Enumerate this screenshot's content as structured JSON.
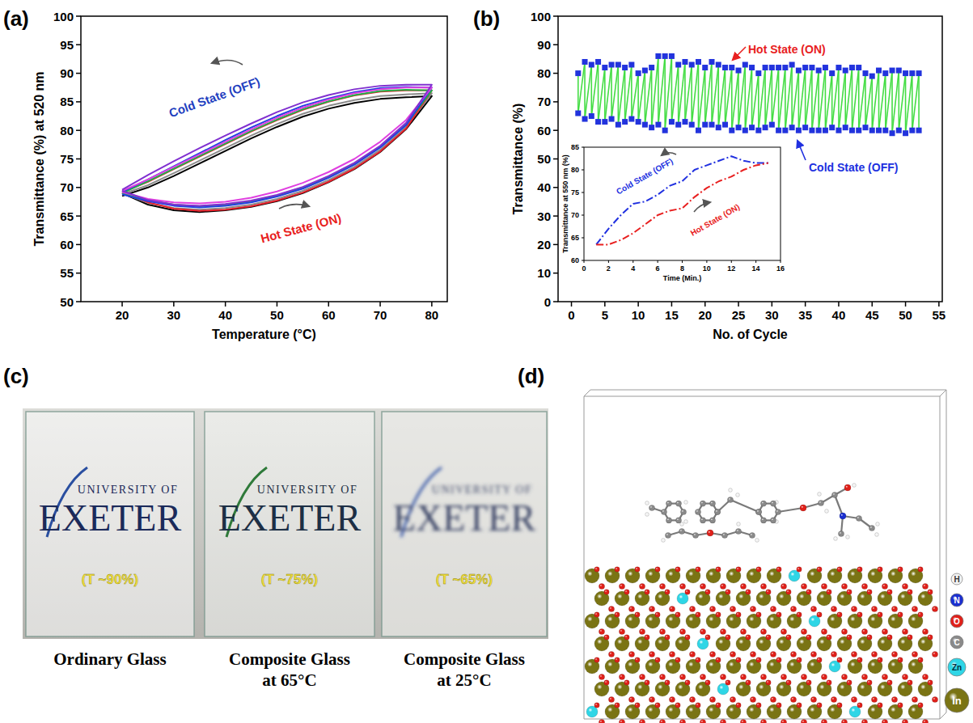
{
  "chart_data": [
    {
      "type": "line",
      "title": "(a)",
      "x_label": "Temperature (°C)",
      "y_label": "Transmittance (%) at 520 nm",
      "x": [
        20,
        25,
        30,
        35,
        40,
        45,
        50,
        55,
        60,
        65,
        70,
        75,
        80,
        75,
        70,
        65,
        60,
        55,
        50,
        45,
        40,
        35,
        30,
        25,
        20
      ],
      "series": [
        {
          "color": "#000000",
          "line_style": "solid",
          "values": [
            69.0,
            67.0,
            66.0,
            65.7,
            66.0,
            66.6,
            67.6,
            69.0,
            70.9,
            73.2,
            76.2,
            80.2,
            86.0,
            85.8,
            85.5,
            84.8,
            83.8,
            82.4,
            80.6,
            78.6,
            76.4,
            74.2,
            72.0,
            70.0,
            68.5
          ]
        },
        {
          "color": "#8c8c8c",
          "line_style": "solid",
          "values": [
            69.0,
            67.3,
            66.4,
            66.1,
            66.4,
            67.0,
            68.0,
            69.4,
            71.3,
            73.6,
            76.6,
            80.6,
            86.5,
            86.3,
            86.0,
            85.3,
            84.3,
            82.9,
            81.1,
            79.1,
            76.9,
            74.7,
            72.5,
            70.4,
            68.8
          ]
        },
        {
          "color": "#e8202a",
          "line_style": "solid",
          "values": [
            69.2,
            67.4,
            66.3,
            65.9,
            66.1,
            66.7,
            67.7,
            69.1,
            71.0,
            73.3,
            76.3,
            80.3,
            87.0,
            87.0,
            86.8,
            86.1,
            85.0,
            83.6,
            81.8,
            79.8,
            77.6,
            75.4,
            73.2,
            71.0,
            69.2
          ]
        },
        {
          "color": "#22b04a",
          "line_style": "solid",
          "values": [
            69.0,
            67.8,
            67.0,
            66.7,
            67.0,
            67.6,
            68.6,
            70.0,
            71.9,
            74.2,
            77.2,
            81.0,
            87.0,
            87.1,
            86.9,
            86.2,
            85.1,
            83.7,
            81.9,
            79.9,
            77.7,
            75.5,
            73.3,
            71.1,
            69.0
          ]
        },
        {
          "color": "#2040e0",
          "line_style": "solid",
          "values": [
            68.8,
            67.6,
            66.8,
            66.5,
            66.8,
            67.4,
            68.4,
            69.8,
            71.7,
            74.0,
            77.0,
            80.9,
            87.5,
            87.6,
            87.4,
            86.7,
            85.6,
            84.3,
            82.5,
            80.5,
            78.3,
            76.0,
            73.7,
            71.4,
            69.2
          ]
        },
        {
          "color": "#e040e0",
          "line_style": "solid",
          "values": [
            69.2,
            68.0,
            67.4,
            67.2,
            67.5,
            68.2,
            69.3,
            70.8,
            72.7,
            75.0,
            78.0,
            81.8,
            87.5,
            87.5,
            87.2,
            86.5,
            85.4,
            84.0,
            82.2,
            80.2,
            78.0,
            75.8,
            73.6,
            71.4,
            69.4
          ]
        },
        {
          "color": "#8030d0",
          "line_style": "solid",
          "values": [
            69.4,
            67.8,
            67.0,
            66.8,
            67.1,
            67.7,
            68.7,
            70.1,
            72.0,
            74.3,
            77.3,
            81.3,
            88.0,
            88.0,
            87.8,
            87.2,
            86.2,
            84.9,
            83.2,
            81.2,
            79.1,
            76.9,
            74.6,
            72.2,
            69.6
          ]
        }
      ],
      "annotations": [
        "Cold State (OFF)",
        "Hot State (ON)"
      ],
      "xlim": [
        12,
        83
      ],
      "xticks": [
        20,
        30,
        40,
        50,
        60,
        70,
        80
      ],
      "ylim": [
        50,
        100
      ],
      "yticks": [
        50,
        55,
        60,
        65,
        70,
        75,
        80,
        85,
        90,
        95,
        100
      ],
      "grid": false
    },
    {
      "type": "line",
      "title": "(b)",
      "x_label": "No. of Cycle",
      "y_label": "Transmittance (%)",
      "x": [
        1,
        2,
        3,
        4,
        5,
        6,
        7,
        8,
        9,
        10,
        11,
        12,
        13,
        14,
        15,
        16,
        17,
        18,
        19,
        20,
        21,
        22,
        23,
        24,
        25,
        26,
        27,
        28,
        29,
        30,
        31,
        32,
        33,
        34,
        35,
        36,
        37,
        38,
        39,
        40,
        41,
        42,
        43,
        44,
        45,
        46,
        47,
        48,
        49,
        50,
        51,
        52
      ],
      "series": [
        {
          "name": "Hot State (ON)",
          "color": "#2233dd",
          "marker": "square",
          "line_style": "none",
          "values": [
            80,
            84,
            83,
            84,
            82,
            83,
            83,
            82,
            83,
            80,
            81,
            82,
            86,
            86,
            86,
            83,
            84,
            83,
            84,
            82,
            84,
            83,
            82,
            82,
            81,
            83,
            82,
            80,
            82,
            82,
            82,
            82,
            83,
            81,
            82,
            82,
            81,
            82,
            80,
            82,
            81,
            82,
            82,
            80,
            79,
            81,
            80,
            81,
            81,
            80,
            80,
            80
          ]
        },
        {
          "name": "Cold State (OFF)",
          "color": "#2233dd",
          "marker": "square",
          "line_style": "none",
          "values": [
            66,
            64,
            65,
            63,
            63,
            64,
            62,
            63,
            64,
            63,
            62,
            61,
            62,
            60,
            63,
            62,
            63,
            62,
            60,
            62,
            62,
            61,
            62,
            60,
            61,
            60,
            61,
            60,
            61,
            62,
            60,
            60,
            61,
            60,
            61,
            60,
            60,
            60,
            61,
            60,
            61,
            60,
            60,
            61,
            60,
            60,
            60,
            59,
            60,
            59,
            60,
            60
          ]
        }
      ],
      "xlim": [
        -2,
        55.5
      ],
      "xticks": [
        0,
        5,
        10,
        15,
        20,
        25,
        30,
        35,
        40,
        45,
        50,
        55
      ],
      "ylim": [
        0,
        100
      ],
      "yticks": [
        0,
        10,
        20,
        30,
        40,
        50,
        60,
        70,
        80,
        90,
        100
      ],
      "grid": false
    },
    {
      "type": "line",
      "x_label": "Time (Min.)",
      "y_label": "Transmittance at 550 nm (%)",
      "x": [
        1,
        2,
        3,
        4,
        5,
        6,
        7,
        8,
        9,
        10,
        11,
        12,
        13,
        14,
        15
      ],
      "series": [
        {
          "name": "Cold State (OFF)",
          "color": "#2030e0",
          "line_style": "dashdot",
          "values": [
            63.5,
            67,
            70,
            72.5,
            73,
            74.5,
            76.5,
            77.5,
            80,
            81,
            82,
            83,
            82,
            81.5,
            81.5
          ]
        },
        {
          "name": "Hot State (ON)",
          "color": "#e82020",
          "line_style": "dashdot",
          "values": [
            63.5,
            63.5,
            64.5,
            66,
            68,
            70,
            71,
            71.5,
            74,
            76,
            77.5,
            78.5,
            80,
            81,
            81.5
          ]
        }
      ],
      "xlim": [
        0,
        16
      ],
      "xticks": [
        0,
        2,
        4,
        6,
        8,
        10,
        12,
        14,
        16
      ],
      "ylim": [
        60,
        85
      ],
      "yticks": [
        60,
        65,
        70,
        75,
        80,
        85
      ],
      "grid": false
    }
  ],
  "photo": {
    "title": "(c)",
    "logo": {
      "line1": "UNIVERSITY OF",
      "line2": "EXETER"
    },
    "samples": [
      {
        "transmittance": "(T ~90%)",
        "caption": [
          "Ordinary Glass"
        ]
      },
      {
        "transmittance": "(T ~75%)",
        "caption": [
          "Composite Glass",
          "at 65°C"
        ]
      },
      {
        "transmittance": "(T ~65%)",
        "caption": [
          "Composite Glass",
          "at 25°C"
        ]
      }
    ]
  },
  "structure": {
    "title": "(d)",
    "legend": [
      {
        "symbol": "H",
        "color": "#f4f4f4"
      },
      {
        "symbol": "N",
        "color": "#1a2fd0"
      },
      {
        "symbol": "O",
        "color": "#e0201a"
      },
      {
        "symbol": "C",
        "color": "#8a8a8a"
      },
      {
        "symbol": "Zn",
        "color": "#2fd6e6"
      },
      {
        "symbol": "In",
        "color": "#7a7414"
      }
    ]
  }
}
